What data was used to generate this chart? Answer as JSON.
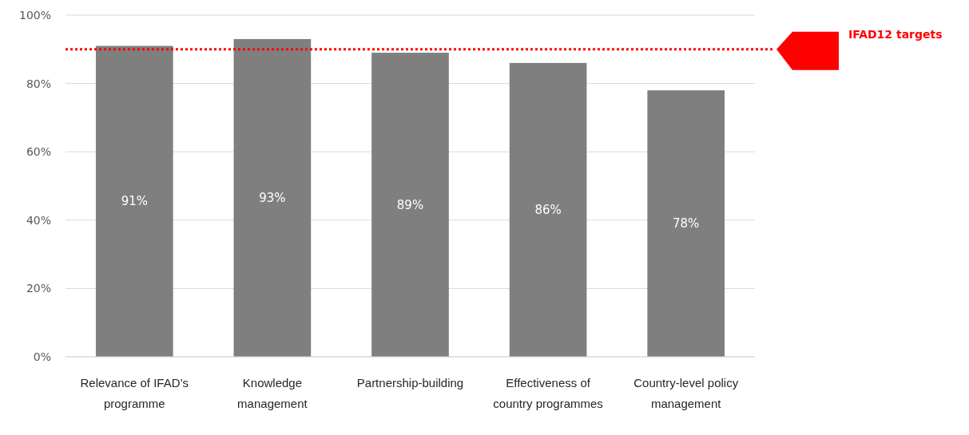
{
  "chart_data": {
    "type": "bar",
    "categories": [
      "Relevance of IFAD’s programme",
      "Knowledge management",
      "Partnership-building",
      "Effectiveness of country programmes",
      "Country-level policy management"
    ],
    "values": [
      91,
      93,
      89,
      86,
      78
    ],
    "value_labels": [
      "91%",
      "93%",
      "89%",
      "86%",
      "78%"
    ],
    "color": "#7f7f7f",
    "ylim": [
      0,
      100
    ],
    "yticks": [
      {
        "value": 0,
        "label": "0%"
      },
      {
        "value": 20,
        "label": "20%"
      },
      {
        "value": 40,
        "label": "40%"
      },
      {
        "value": 60,
        "label": "60%"
      },
      {
        "value": 80,
        "label": "80%"
      },
      {
        "value": 100,
        "label": "100%"
      }
    ],
    "grid": "y",
    "ref_lines": [
      {
        "axis": "y",
        "value": 90,
        "label": "IFAD12 targets",
        "color": "#ff0000",
        "line_style": "dotted"
      }
    ]
  }
}
